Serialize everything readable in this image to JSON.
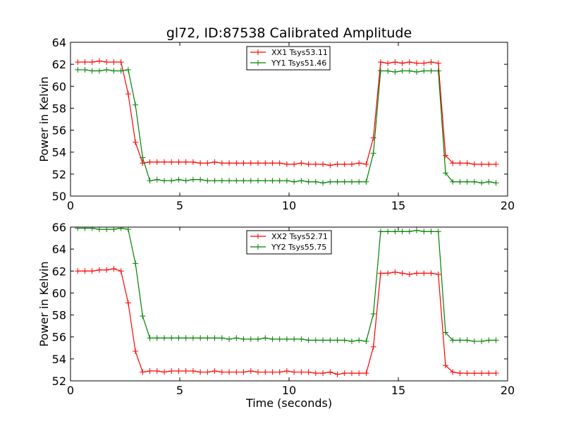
{
  "figure": {
    "title": "gl72, ID:87538 Calibrated Amplitude"
  },
  "chart_data": [
    {
      "type": "line",
      "title": "gl72, ID:87538 Calibrated Amplitude",
      "xlabel": "",
      "ylabel": "Power in Kelvin",
      "xlim": [
        0,
        20
      ],
      "ylim": [
        50,
        64
      ],
      "xticks": [
        "0",
        "5",
        "10",
        "15",
        "20"
      ],
      "yticks": [
        "50",
        "52",
        "54",
        "56",
        "58",
        "60",
        "62",
        "64"
      ],
      "grid": false,
      "legend_position": "top-center",
      "x": [
        0.33,
        0.66,
        0.99,
        1.32,
        1.65,
        1.98,
        2.31,
        2.64,
        2.97,
        3.3,
        3.63,
        3.96,
        4.29,
        4.62,
        4.95,
        5.28,
        5.61,
        5.94,
        6.27,
        6.6,
        6.93,
        7.26,
        7.59,
        7.92,
        8.25,
        8.58,
        8.91,
        9.24,
        9.57,
        9.9,
        10.23,
        10.56,
        10.89,
        11.22,
        11.55,
        11.88,
        12.21,
        12.54,
        12.87,
        13.2,
        13.53,
        13.86,
        14.19,
        14.52,
        14.85,
        15.18,
        15.51,
        15.84,
        16.17,
        16.5,
        16.83,
        17.16,
        17.49,
        17.82,
        18.15,
        18.48,
        18.81,
        19.14,
        19.47
      ],
      "series": [
        {
          "name": "XX1 Tsys53.11",
          "color": "#ff0000",
          "values": [
            62.2,
            62.2,
            62.2,
            62.3,
            62.2,
            62.2,
            62.2,
            59.3,
            54.9,
            53.0,
            53.1,
            53.1,
            53.1,
            53.1,
            53.1,
            53.1,
            53.1,
            53.0,
            53.0,
            53.1,
            53.0,
            53.0,
            53.0,
            53.0,
            53.0,
            53.0,
            53.0,
            53.0,
            53.0,
            52.9,
            52.9,
            53.0,
            52.9,
            52.9,
            52.9,
            52.8,
            52.9,
            52.9,
            52.9,
            53.0,
            52.9,
            55.3,
            62.2,
            62.1,
            62.2,
            62.1,
            62.2,
            62.1,
            62.1,
            62.2,
            62.1,
            53.7,
            53.0,
            53.0,
            53.0,
            52.9,
            52.9,
            52.9,
            52.9
          ]
        },
        {
          "name": "YY1 Tsys51.46",
          "color": "#008000",
          "values": [
            61.5,
            61.5,
            61.4,
            61.4,
            61.5,
            61.4,
            61.4,
            61.5,
            58.3,
            53.5,
            51.4,
            51.5,
            51.4,
            51.4,
            51.5,
            51.4,
            51.5,
            51.5,
            51.4,
            51.4,
            51.4,
            51.4,
            51.4,
            51.4,
            51.4,
            51.4,
            51.4,
            51.4,
            51.4,
            51.4,
            51.3,
            51.4,
            51.3,
            51.3,
            51.2,
            51.3,
            51.3,
            51.3,
            51.3,
            51.3,
            51.3,
            53.9,
            61.4,
            61.4,
            61.3,
            61.4,
            61.4,
            61.3,
            61.4,
            61.4,
            61.4,
            52.1,
            51.3,
            51.3,
            51.3,
            51.3,
            51.2,
            51.3,
            51.2
          ]
        }
      ]
    },
    {
      "type": "line",
      "title": "",
      "xlabel": "Time (seconds)",
      "ylabel": "Power in Kelvin",
      "xlim": [
        0,
        20
      ],
      "ylim": [
        52,
        66
      ],
      "xticks": [
        "0",
        "5",
        "10",
        "15",
        "20"
      ],
      "yticks": [
        "52",
        "54",
        "56",
        "58",
        "60",
        "62",
        "64",
        "66"
      ],
      "grid": false,
      "legend_position": "top-center",
      "x": [
        0.33,
        0.66,
        0.99,
        1.32,
        1.65,
        1.98,
        2.31,
        2.64,
        2.97,
        3.3,
        3.63,
        3.96,
        4.29,
        4.62,
        4.95,
        5.28,
        5.61,
        5.94,
        6.27,
        6.6,
        6.93,
        7.26,
        7.59,
        7.92,
        8.25,
        8.58,
        8.91,
        9.24,
        9.57,
        9.9,
        10.23,
        10.56,
        10.89,
        11.22,
        11.55,
        11.88,
        12.21,
        12.54,
        12.87,
        13.2,
        13.53,
        13.86,
        14.19,
        14.52,
        14.85,
        15.18,
        15.51,
        15.84,
        16.17,
        16.5,
        16.83,
        17.16,
        17.49,
        17.82,
        18.15,
        18.48,
        18.81,
        19.14,
        19.47
      ],
      "series": [
        {
          "name": "XX2 Tsys52.71",
          "color": "#ff0000",
          "values": [
            62.0,
            62.0,
            62.0,
            62.1,
            62.1,
            62.2,
            62.0,
            59.1,
            54.7,
            52.8,
            52.9,
            52.9,
            52.8,
            52.9,
            52.9,
            52.9,
            52.9,
            52.8,
            52.8,
            52.9,
            52.8,
            52.8,
            52.8,
            52.8,
            52.9,
            52.8,
            52.8,
            52.8,
            52.8,
            52.9,
            52.8,
            52.8,
            52.8,
            52.7,
            52.7,
            52.8,
            52.6,
            52.7,
            52.7,
            52.7,
            52.7,
            55.1,
            61.8,
            61.8,
            61.9,
            61.8,
            61.7,
            61.8,
            61.8,
            61.8,
            61.7,
            53.4,
            52.8,
            52.7,
            52.7,
            52.7,
            52.7,
            52.7,
            52.7
          ]
        },
        {
          "name": "YY2 Tsys55.75",
          "color": "#008000",
          "values": [
            65.9,
            65.9,
            65.9,
            65.8,
            65.8,
            65.8,
            65.9,
            65.8,
            62.7,
            57.9,
            55.9,
            55.9,
            55.9,
            55.9,
            55.9,
            55.9,
            55.9,
            55.9,
            55.9,
            55.9,
            55.9,
            55.8,
            55.9,
            55.8,
            55.8,
            55.8,
            55.9,
            55.8,
            55.8,
            55.8,
            55.8,
            55.8,
            55.7,
            55.7,
            55.7,
            55.7,
            55.7,
            55.7,
            55.6,
            55.7,
            55.6,
            58.1,
            65.6,
            65.6,
            65.6,
            65.6,
            65.6,
            65.7,
            65.6,
            65.6,
            65.6,
            56.4,
            55.7,
            55.7,
            55.7,
            55.6,
            55.6,
            55.7,
            55.7
          ]
        }
      ]
    }
  ]
}
